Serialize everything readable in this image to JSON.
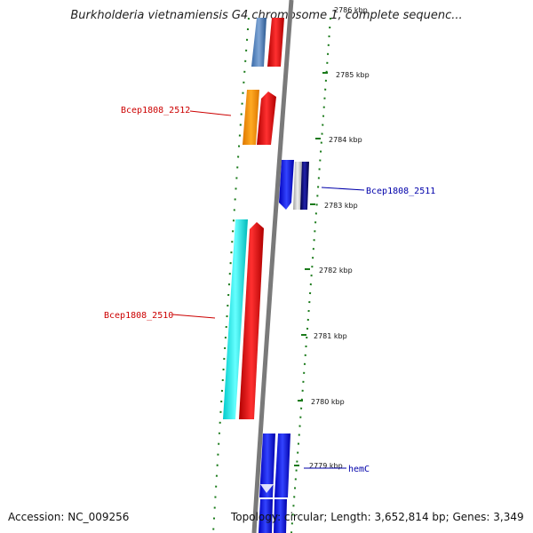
{
  "title": "Burkholderia vietnamiensis G4 chromosome 1, complete sequenc...",
  "footer": {
    "accession": "Accession: NC_009256",
    "topology": "Topology: circular; Length: 3,652,814 bp; Genes: 3,349"
  },
  "axis": {
    "ticks": [
      "2786 kbp",
      "2785 kbp",
      "2784 kbp",
      "2783 kbp",
      "2782 kbp",
      "2781 kbp",
      "2780 kbp",
      "2779 kbp"
    ]
  },
  "gene_labels": [
    {
      "text": "Bcep1808_2512",
      "color": "#cc0000"
    },
    {
      "text": "Bcep1808_2511",
      "color": "#0000aa"
    },
    {
      "text": "Bcep1808_2510",
      "color": "#cc0000"
    },
    {
      "text": "hemC",
      "color": "#0000aa"
    }
  ],
  "colors": {
    "backbone": "#808080",
    "dots": "#1a7a1a",
    "cds_red": "#ee1111",
    "cds_orange": "#ff9900",
    "cds_cyan": "#00eeee",
    "cds_blue": "#1111ee",
    "cds_steelblue": "#4a7fc0",
    "cds_navy": "#000066"
  }
}
